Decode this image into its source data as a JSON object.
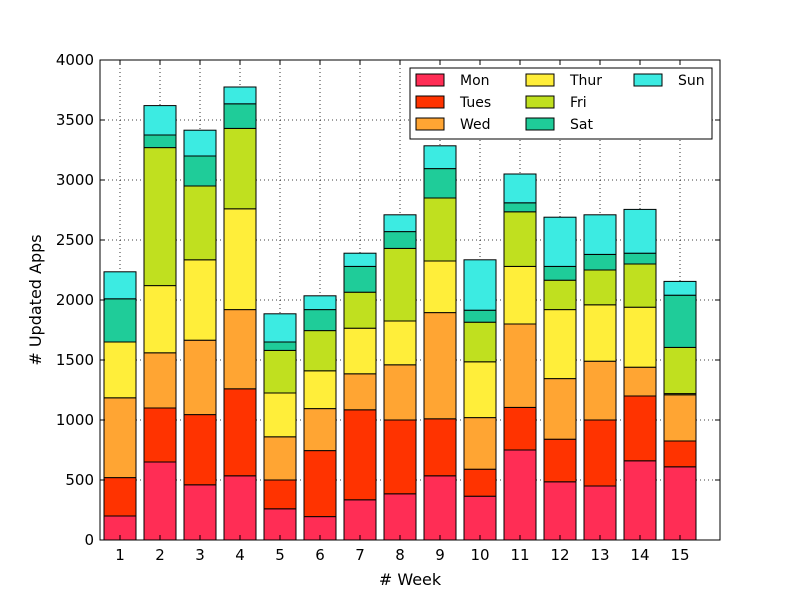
{
  "chart_data": {
    "type": "bar",
    "stacked": true,
    "title": "",
    "xlabel": "# Week",
    "ylabel": "# Updated Apps",
    "ylim": [
      0,
      4000
    ],
    "yticks": [
      0,
      500,
      1000,
      1500,
      2000,
      2500,
      3000,
      3500,
      4000
    ],
    "grid": true,
    "legend_position": "top-right",
    "categories": [
      "1",
      "2",
      "3",
      "4",
      "5",
      "6",
      "7",
      "8",
      "9",
      "10",
      "11",
      "12",
      "13",
      "14",
      "15"
    ],
    "series": [
      {
        "name": "Mon",
        "color": "#ff2d55",
        "values": [
          200,
          650,
          460,
          535,
          260,
          195,
          335,
          385,
          535,
          365,
          750,
          485,
          450,
          660,
          610
        ]
      },
      {
        "name": "Tues",
        "color": "#ff3300",
        "values": [
          320,
          450,
          585,
          725,
          240,
          550,
          750,
          615,
          475,
          225,
          355,
          355,
          550,
          540,
          215
        ]
      },
      {
        "name": "Wed",
        "color": "#ffa533",
        "values": [
          665,
          460,
          620,
          660,
          360,
          350,
          300,
          460,
          885,
          430,
          695,
          505,
          490,
          240,
          385
        ]
      },
      {
        "name": "Thur",
        "color": "#ffee3a",
        "values": [
          465,
          560,
          670,
          840,
          365,
          315,
          380,
          365,
          430,
          465,
          480,
          575,
          470,
          500,
          10
        ]
      },
      {
        "name": "Fri",
        "color": "#c0e01f",
        "values": [
          0,
          1150,
          615,
          670,
          355,
          335,
          300,
          605,
          525,
          330,
          455,
          245,
          290,
          360,
          385
        ]
      },
      {
        "name": "Sat",
        "color": "#1fcc99",
        "values": [
          360,
          105,
          250,
          205,
          70,
          175,
          215,
          140,
          245,
          100,
          75,
          115,
          130,
          90,
          435
        ]
      },
      {
        "name": "Sun",
        "color": "#3cebe2",
        "values": [
          225,
          245,
          215,
          140,
          235,
          115,
          110,
          140,
          190,
          420,
          240,
          410,
          330,
          365,
          115
        ]
      }
    ]
  }
}
